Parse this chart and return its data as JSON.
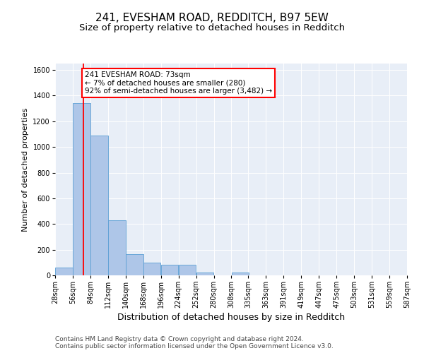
{
  "title1": "241, EVESHAM ROAD, REDDITCH, B97 5EW",
  "title2": "Size of property relative to detached houses in Redditch",
  "xlabel": "Distribution of detached houses by size in Redditch",
  "ylabel": "Number of detached properties",
  "bin_left_edges": [
    28,
    56,
    84,
    112,
    140,
    168,
    196,
    224,
    252,
    280,
    308,
    335,
    363,
    391,
    419,
    447,
    475,
    503,
    531,
    559
  ],
  "bin_labels": [
    "28sqm",
    "56sqm",
    "84sqm",
    "112sqm",
    "140sqm",
    "168sqm",
    "196sqm",
    "224sqm",
    "252sqm",
    "280sqm",
    "308sqm",
    "335sqm",
    "363sqm",
    "391sqm",
    "419sqm",
    "447sqm",
    "475sqm",
    "503sqm",
    "531sqm",
    "559sqm",
    "587sqm"
  ],
  "bar_heights": [
    60,
    1340,
    1090,
    430,
    165,
    100,
    80,
    80,
    20,
    0,
    20,
    0,
    0,
    0,
    0,
    0,
    0,
    0,
    0,
    0
  ],
  "bar_color": "#aec6e8",
  "bar_edge_color": "#5a9fd4",
  "red_line_x": 73,
  "annotation_line1": "241 EVESHAM ROAD: 73sqm",
  "annotation_line2": "← 7% of detached houses are smaller (280)",
  "annotation_line3": "92% of semi-detached houses are larger (3,482) →",
  "annotation_box_color": "white",
  "annotation_box_edge_color": "red",
  "ylim": [
    0,
    1650
  ],
  "xlim": [
    28,
    587
  ],
  "yticks": [
    0,
    200,
    400,
    600,
    800,
    1000,
    1200,
    1400,
    1600
  ],
  "background_color": "#e8eef7",
  "footer1": "Contains HM Land Registry data © Crown copyright and database right 2024.",
  "footer2": "Contains public sector information licensed under the Open Government Licence v3.0.",
  "title1_fontsize": 11,
  "title2_fontsize": 9.5,
  "xlabel_fontsize": 9,
  "ylabel_fontsize": 8,
  "tick_fontsize": 7,
  "annotation_fontsize": 7.5,
  "footer_fontsize": 6.5
}
